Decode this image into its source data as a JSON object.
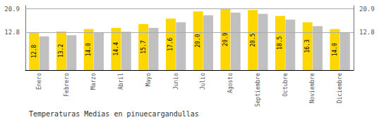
{
  "chart_data": {
    "type": "bar",
    "title": "Temperaturas Medias en pinuecargandullas",
    "categories": [
      "Enero",
      "Febrero",
      "Marzo",
      "Abril",
      "Mayo",
      "Junio",
      "Julio",
      "Agosto",
      "Septiembre",
      "Octubre",
      "Noviembre",
      "Diciembre"
    ],
    "series": [
      {
        "color": "#FFD700",
        "values": [
          12.8,
          13.2,
          14.0,
          14.4,
          15.7,
          17.6,
          20.0,
          20.9,
          20.5,
          18.5,
          16.3,
          14.0
        ],
        "data_labels": true,
        "value_labels": [
          "12.8",
          "13.2",
          "14.0",
          "14.4",
          "15.7",
          "17.6",
          "20.0",
          "20.9",
          "20.5",
          "18.5",
          "16.3",
          "14.0"
        ]
      },
      {
        "color": "#C0C0C0",
        "values": [
          11.5,
          11.9,
          12.7,
          13.1,
          14.4,
          16.3,
          18.7,
          19.6,
          19.2,
          17.2,
          15.0,
          12.7
        ]
      }
    ],
    "ylim": [
      0,
      22.0
    ],
    "yticks": [
      12.8,
      20.9
    ],
    "y2lim": [
      0,
      22.0
    ],
    "y2ticks": [
      12.8,
      20.9
    ],
    "grid": true
  }
}
